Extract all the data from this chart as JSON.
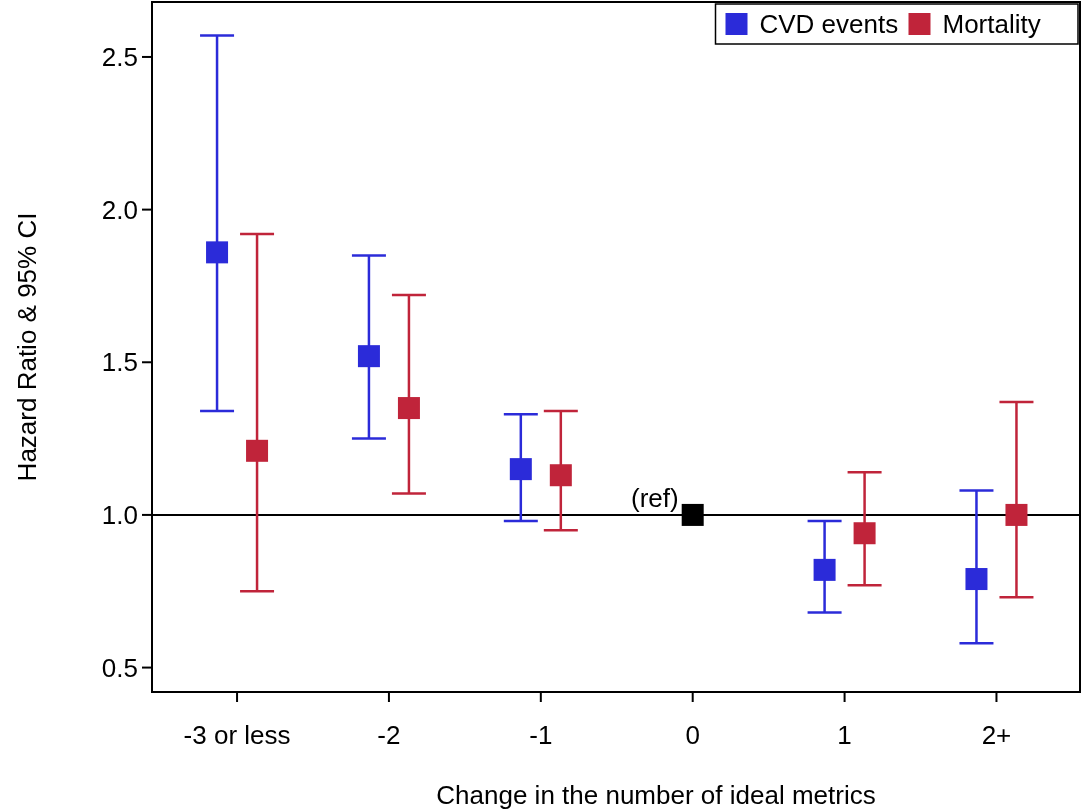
{
  "chart_data": {
    "type": "scatter",
    "xlabel": "Change in the number of ideal metrics",
    "ylabel": "Hazard Ratio & 95% CI",
    "categories": [
      "-3 or less",
      "-2",
      "-1",
      "0",
      "1",
      "2+"
    ],
    "series": [
      {
        "name": "CVD events",
        "color": "#2b2bd9",
        "values": [
          1.86,
          1.52,
          1.15,
          null,
          0.82,
          0.79
        ],
        "errors": [
          [
            1.34,
            2.57
          ],
          [
            1.25,
            1.85
          ],
          [
            0.98,
            1.33
          ],
          null,
          [
            0.68,
            0.98
          ],
          [
            0.58,
            1.08
          ]
        ]
      },
      {
        "name": "Mortality",
        "color": "#c0243a",
        "values": [
          1.21,
          1.35,
          1.13,
          null,
          0.94,
          1.0
        ],
        "errors": [
          [
            0.75,
            1.92
          ],
          [
            1.07,
            1.72
          ],
          [
            0.95,
            1.34
          ],
          null,
          [
            0.77,
            1.14
          ],
          [
            0.73,
            1.37
          ]
        ]
      },
      {
        "color": "#000000",
        "values": [
          null,
          null,
          null,
          1.0,
          null,
          null
        ]
      }
    ],
    "ylim": [
      0.42,
      2.68
    ],
    "yticks": [
      {
        "value": 0.5,
        "label": "0.5"
      },
      {
        "value": 1,
        "label": "1.0"
      },
      {
        "value": 1.5,
        "label": "1.5"
      },
      {
        "value": 2,
        "label": "2.0"
      },
      {
        "value": 2.5,
        "label": "2.5"
      }
    ],
    "ref_lines": [
      {
        "axis": "y",
        "value": 1,
        "color": "#000000"
      }
    ],
    "annotations": [
      {
        "text": "(ref)",
        "x": "0",
        "y": 1
      }
    ],
    "marker": "square",
    "legend": "top right"
  }
}
